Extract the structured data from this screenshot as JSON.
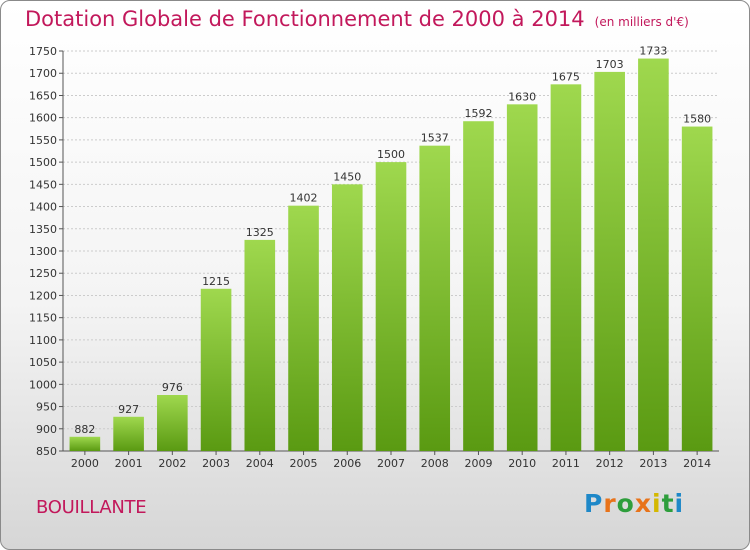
{
  "header": {
    "title": "Dotation Globale de Fonctionnement de 2000 à 2014",
    "subtitle": "(en milliers d'€)"
  },
  "footer": {
    "city": "BOUILLANTE",
    "logo_text": "Proxiti"
  },
  "colors": {
    "accent": "#c2185b",
    "bar_top": "#9fd84e",
    "bar_bottom": "#5a9a12",
    "grid": "#cccccc"
  },
  "chart_data": {
    "type": "bar",
    "title": "Dotation Globale de Fonctionnement de 2000 à 2014",
    "subtitle": "(en milliers d'€)",
    "xlabel": "",
    "ylabel": "",
    "categories": [
      "2000",
      "2001",
      "2002",
      "2003",
      "2004",
      "2005",
      "2006",
      "2007",
      "2008",
      "2009",
      "2010",
      "2011",
      "2012",
      "2013",
      "2014"
    ],
    "values": [
      882,
      927,
      976,
      1215,
      1325,
      1402,
      1450,
      1500,
      1537,
      1592,
      1630,
      1675,
      1703,
      1733,
      1580
    ],
    "ylim": [
      850,
      1750
    ],
    "yticks": [
      850,
      900,
      950,
      1000,
      1050,
      1100,
      1150,
      1200,
      1250,
      1300,
      1350,
      1400,
      1450,
      1500,
      1550,
      1600,
      1650,
      1700,
      1750
    ],
    "grid": true,
    "legend": "none"
  }
}
